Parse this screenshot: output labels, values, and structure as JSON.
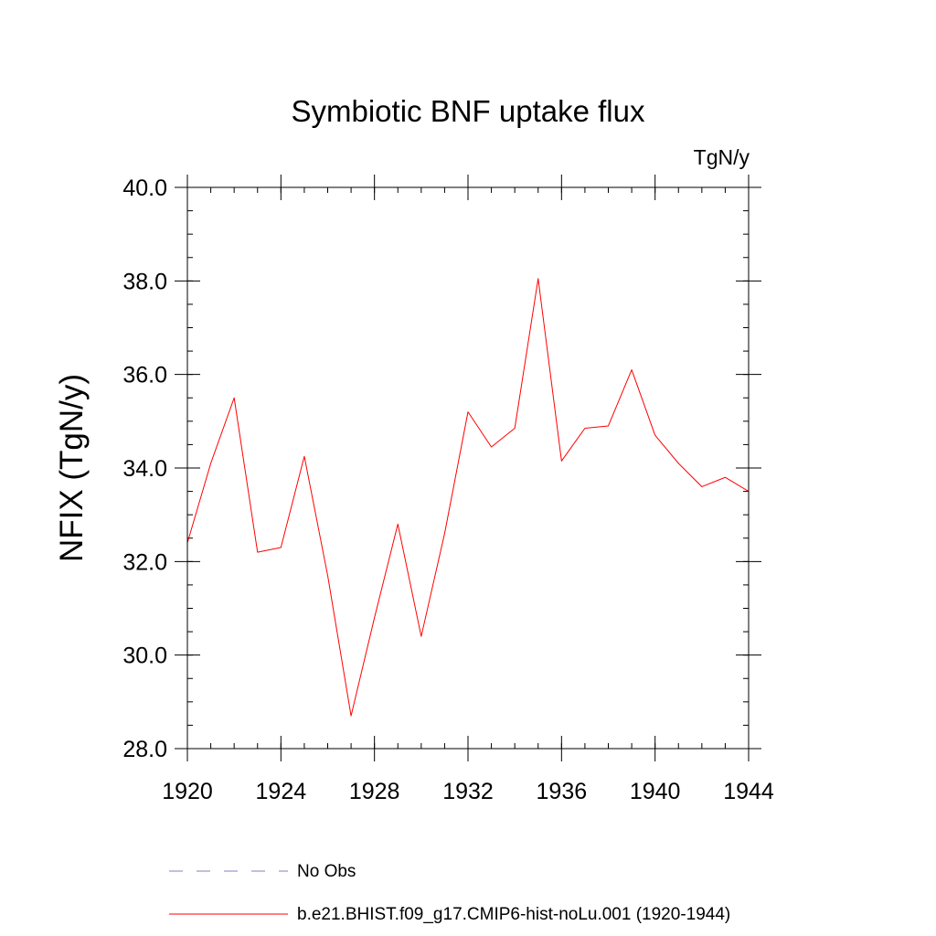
{
  "chart_data": {
    "type": "line",
    "title": "Symbiotic BNF uptake flux",
    "units": "TgN/y",
    "ylabel": "NFIX  (TgN/y)",
    "xlabel": "",
    "xlim": [
      1920,
      1944
    ],
    "ylim": [
      28.0,
      40.0
    ],
    "x_ticks": [
      1920,
      1924,
      1928,
      1932,
      1936,
      1940,
      1944
    ],
    "y_ticks": [
      "28.0",
      "30.0",
      "32.0",
      "34.0",
      "36.0",
      "38.0",
      "40.0"
    ],
    "grid": false,
    "series": [
      {
        "name": "b.e21.BHIST.f09_g17.CMIP6-hist-noLu.001 (1920-1944)",
        "color": "#ff0000",
        "x": [
          1920,
          1921,
          1922,
          1923,
          1924,
          1925,
          1926,
          1927,
          1928,
          1929,
          1930,
          1931,
          1932,
          1933,
          1934,
          1935,
          1936,
          1937,
          1938,
          1939,
          1940,
          1941,
          1942,
          1943,
          1944
        ],
        "y": [
          32.4,
          34.1,
          35.5,
          32.2,
          32.3,
          34.25,
          31.7,
          28.7,
          30.8,
          32.8,
          30.4,
          32.6,
          35.2,
          34.45,
          34.85,
          38.05,
          34.15,
          34.85,
          34.9,
          36.1,
          34.7,
          34.1,
          33.6,
          33.8,
          33.5
        ]
      }
    ],
    "legend": {
      "position": "bottom",
      "entries": [
        {
          "label": "No Obs",
          "style": "dashed",
          "color": "#8080c0"
        },
        {
          "label": "b.e21.BHIST.f09_g17.CMIP6-hist-noLu.001 (1920-1944)",
          "style": "solid",
          "color": "#ff0000"
        }
      ]
    }
  }
}
